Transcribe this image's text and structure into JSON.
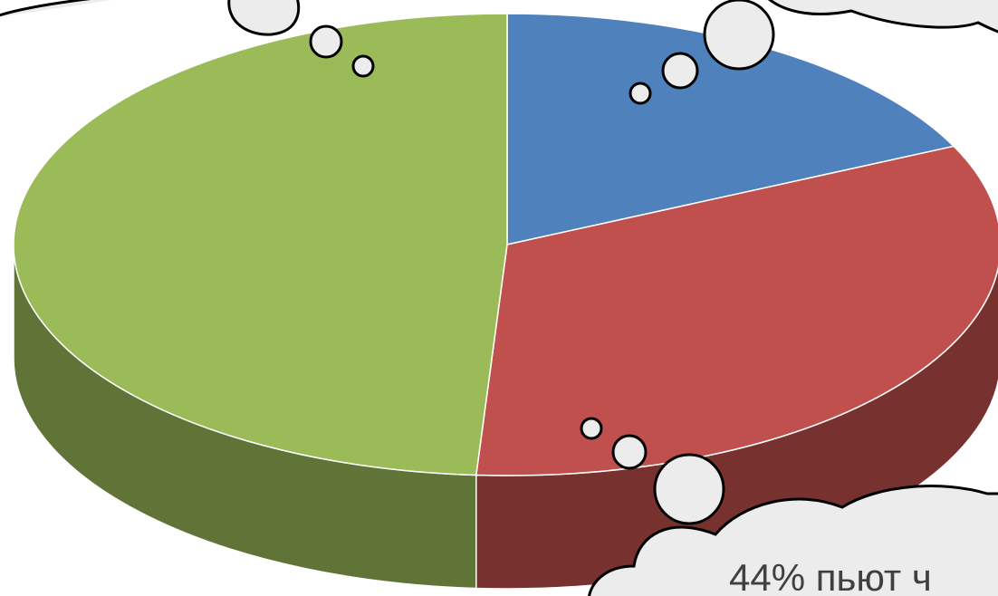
{
  "chart_data": {
    "type": "pie3d",
    "values": [
      18,
      33,
      49
    ],
    "colors": [
      "#4f81bd",
      "#c0504d",
      "#9bbb59"
    ],
    "annotation": "44% пьют ч"
  }
}
